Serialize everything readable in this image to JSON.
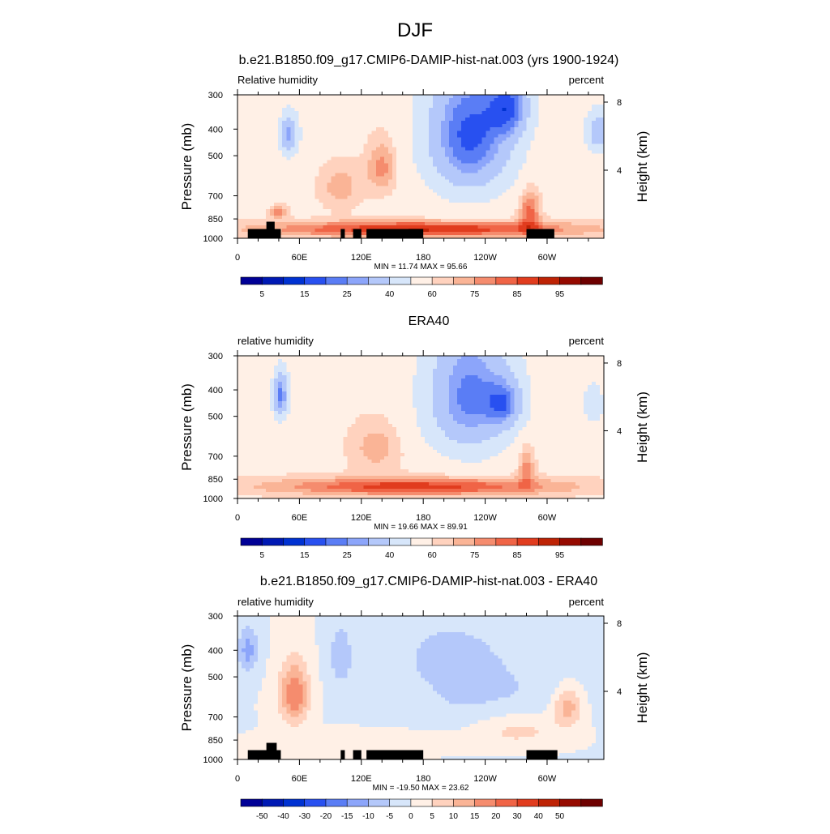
{
  "figure": {
    "title": "DJF"
  },
  "colors": {
    "abs_levels": [
      "#000096",
      "#0019B4",
      "#0032D2",
      "#2850F0",
      "#5A7DF5",
      "#8CA5FA",
      "#B4C8FA",
      "#D7E6FA",
      "#FFF0E6",
      "#FFD2BE",
      "#FAB496",
      "#F58C6E",
      "#F06446",
      "#E13C1E",
      "#BE2305",
      "#960A00",
      "#6E0000"
    ],
    "diff_levels": [
      "#000096",
      "#0019B4",
      "#0032D2",
      "#2850F0",
      "#5A7DF5",
      "#8CA5FA",
      "#B4C8FA",
      "#D7E6FA",
      "#FFF0E6",
      "#FFD2BE",
      "#FAB496",
      "#F58C6E",
      "#F06446",
      "#E13C1E",
      "#BE2305",
      "#960A00",
      "#6E0000"
    ],
    "land_mask": "#000000"
  },
  "chart_data": [
    {
      "type": "heatmap",
      "title": "b.e21.B1850.f09_g17.CMIP6-DAMIP-hist-nat.003 (yrs 1900-1924)",
      "left_label": "Relative humidity",
      "right_label": "percent",
      "ylabel": "Pressure (mb)",
      "ylabel_right": "Height (km)",
      "y_ticks": [
        "300",
        "400",
        "500",
        "700",
        "850",
        "1000"
      ],
      "y_tick_values": [
        300,
        400,
        500,
        700,
        850,
        1000
      ],
      "y_right_ticks": [
        "8",
        "4"
      ],
      "y_right_values": [
        8,
        4
      ],
      "x_ticks": [
        "0",
        "60E",
        "120E",
        "180",
        "120W",
        "60W"
      ],
      "x_tick_values": [
        0,
        60,
        120,
        180,
        240,
        300
      ],
      "xlim": [
        0,
        355
      ],
      "ylim": [
        1000,
        300
      ],
      "minmax_text": "MIN =  11.74  MAX =  95.66",
      "colorbar_labels": [
        "5",
        "15",
        "25",
        "40",
        "60",
        "75",
        "85",
        "95"
      ],
      "colorbar_bounds": [
        5,
        10,
        15,
        20,
        25,
        30,
        40,
        50,
        60,
        65,
        70,
        75,
        80,
        85,
        90,
        95
      ],
      "value_range": [
        0,
        100
      ],
      "land": [
        {
          "lon0": 10,
          "lon1": 42,
          "p_top": 925
        },
        {
          "lon0": 28,
          "lon1": 36,
          "p_top": 870
        },
        {
          "lon0": 100,
          "lon1": 104,
          "p_top": 925
        },
        {
          "lon0": 112,
          "lon1": 120,
          "p_top": 925
        },
        {
          "lon0": 125,
          "lon1": 180,
          "p_top": 925
        },
        {
          "lon0": 280,
          "lon1": 307,
          "p_top": 925
        }
      ],
      "features": [
        {
          "lon": 50,
          "p": 420,
          "slon": 10,
          "sp": 80,
          "a": -30
        },
        {
          "lon": 40,
          "p": 800,
          "slon": 8,
          "sp": 40,
          "a": 15
        },
        {
          "lon": 140,
          "p": 550,
          "slon": 14,
          "sp": 120,
          "a": 15
        },
        {
          "lon": 225,
          "p": 420,
          "slon": 45,
          "sp": 260,
          "a": -40
        },
        {
          "lon": 265,
          "p": 330,
          "slon": 20,
          "sp": 90,
          "a": -25
        },
        {
          "lon": 350,
          "p": 410,
          "slon": 14,
          "sp": 80,
          "a": -25
        },
        {
          "lon": 283,
          "p": 800,
          "slon": 10,
          "sp": 150,
          "a": 20
        },
        {
          "lon": 180,
          "p": 925,
          "slon": 150,
          "sp": 60,
          "a": 28
        },
        {
          "lon": 100,
          "p": 650,
          "slon": 20,
          "sp": 120,
          "a": 10
        }
      ]
    },
    {
      "type": "heatmap",
      "title": "ERA40",
      "left_label": "relative humidity",
      "right_label": "percent",
      "ylabel": "Pressure (mb)",
      "ylabel_right": "Height (km)",
      "y_ticks": [
        "300",
        "400",
        "500",
        "700",
        "850",
        "1000"
      ],
      "y_tick_values": [
        300,
        400,
        500,
        700,
        850,
        1000
      ],
      "y_right_ticks": [
        "8",
        "4"
      ],
      "y_right_values": [
        8,
        4
      ],
      "x_ticks": [
        "0",
        "60E",
        "120E",
        "180",
        "120W",
        "60W"
      ],
      "x_tick_values": [
        0,
        60,
        120,
        180,
        240,
        300
      ],
      "xlim": [
        0,
        355
      ],
      "ylim": [
        1000,
        300
      ],
      "minmax_text": "MIN =  19.66  MAX =  89.91",
      "colorbar_labels": [
        "5",
        "15",
        "25",
        "40",
        "60",
        "75",
        "85",
        "95"
      ],
      "colorbar_bounds": [
        5,
        10,
        15,
        20,
        25,
        30,
        40,
        50,
        60,
        65,
        70,
        75,
        80,
        85,
        90,
        95
      ],
      "value_range": [
        0,
        100
      ],
      "land": [],
      "features": [
        {
          "lon": 42,
          "p": 420,
          "slon": 8,
          "sp": 90,
          "a": -35
        },
        {
          "lon": 225,
          "p": 420,
          "slon": 45,
          "sp": 260,
          "a": -35
        },
        {
          "lon": 260,
          "p": 450,
          "slon": 18,
          "sp": 90,
          "a": -20
        },
        {
          "lon": 345,
          "p": 450,
          "slon": 12,
          "sp": 90,
          "a": -15
        },
        {
          "lon": 135,
          "p": 650,
          "slon": 25,
          "sp": 140,
          "a": 10
        },
        {
          "lon": 280,
          "p": 760,
          "slon": 8,
          "sp": 140,
          "a": 15
        },
        {
          "lon": 175,
          "p": 905,
          "slon": 140,
          "sp": 70,
          "a": 25
        }
      ]
    },
    {
      "type": "heatmap",
      "title": "b.e21.B1850.f09_g17.CMIP6-DAMIP-hist-nat.003 - ERA40",
      "left_label": "relative humidity",
      "right_label": "percent",
      "ylabel": "Pressure (mb)",
      "ylabel_right": "Height (km)",
      "y_ticks": [
        "300",
        "400",
        "500",
        "700",
        "850",
        "1000"
      ],
      "y_tick_values": [
        300,
        400,
        500,
        700,
        850,
        1000
      ],
      "y_right_ticks": [
        "8",
        "4"
      ],
      "y_right_values": [
        8,
        4
      ],
      "x_ticks": [
        "0",
        "60E",
        "120E",
        "180",
        "120W",
        "60W"
      ],
      "x_tick_values": [
        0,
        60,
        120,
        180,
        240,
        300
      ],
      "xlim": [
        0,
        355
      ],
      "ylim": [
        1000,
        300
      ],
      "minmax_text": "MIN = -19.50  MAX =  23.62",
      "colorbar_labels": [
        "-50",
        "-40",
        "-30",
        "-20",
        "-15",
        "-10",
        "-5",
        "0",
        "5",
        "10",
        "15",
        "20",
        "30",
        "40",
        "50"
      ],
      "colorbar_bounds": [
        -50,
        -40,
        -30,
        -20,
        -15,
        -10,
        -5,
        0,
        5,
        10,
        15,
        20,
        30,
        40,
        50
      ],
      "value_range": [
        -20,
        25
      ],
      "land": [
        {
          "lon0": 10,
          "lon1": 42,
          "p_top": 925
        },
        {
          "lon0": 28,
          "lon1": 38,
          "p_top": 870
        },
        {
          "lon0": 100,
          "lon1": 104,
          "p_top": 925
        },
        {
          "lon0": 112,
          "lon1": 120,
          "p_top": 925
        },
        {
          "lon0": 125,
          "lon1": 180,
          "p_top": 925
        },
        {
          "lon0": 280,
          "lon1": 310,
          "p_top": 925
        }
      ],
      "features": [
        {
          "lon": 10,
          "p": 400,
          "slon": 10,
          "sp": 80,
          "a": -12
        },
        {
          "lon": 55,
          "p": 580,
          "slon": 14,
          "sp": 150,
          "a": 20
        },
        {
          "lon": 100,
          "p": 420,
          "slon": 12,
          "sp": 120,
          "a": -8
        },
        {
          "lon": 240,
          "p": 600,
          "slon": 90,
          "sp": 260,
          "a": -6
        },
        {
          "lon": 200,
          "p": 400,
          "slon": 50,
          "sp": 120,
          "a": -4
        },
        {
          "lon": 270,
          "p": 780,
          "slon": 50,
          "sp": 120,
          "a": 9
        },
        {
          "lon": 320,
          "p": 640,
          "slon": 14,
          "sp": 100,
          "a": 14
        },
        {
          "lon": 160,
          "p": 860,
          "slon": 60,
          "sp": 90,
          "a": 5
        }
      ]
    }
  ]
}
